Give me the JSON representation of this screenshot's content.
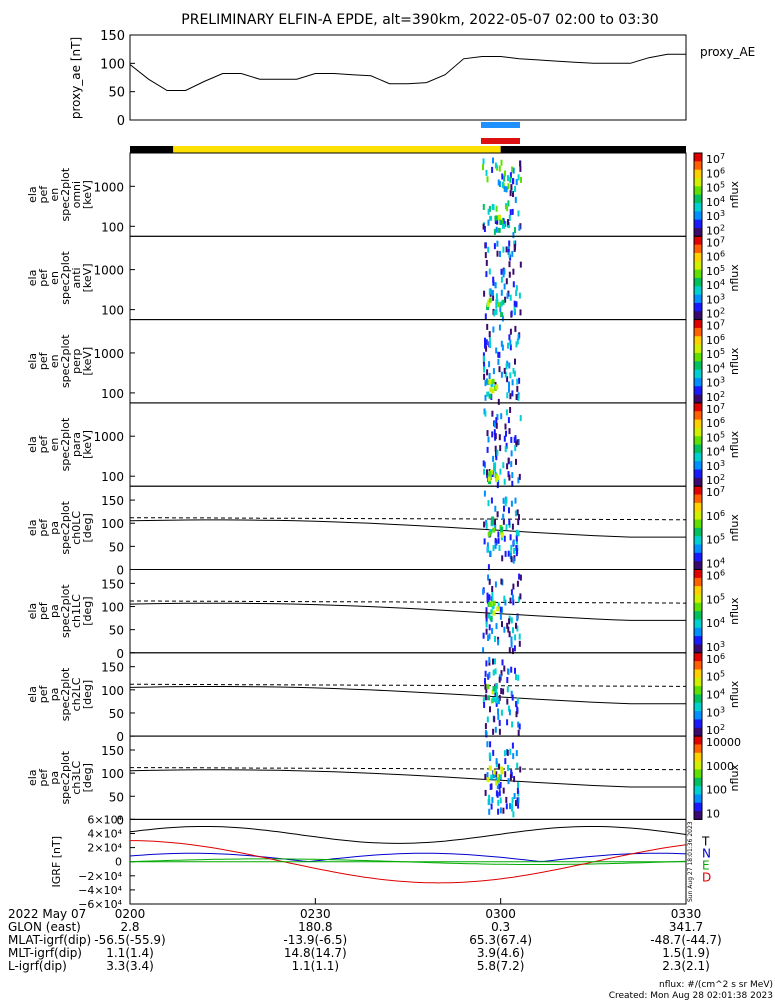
{
  "title": "PRELIMINARY ELFIN-A EPDE, alt=390km, 2022-05-07 02:00 to 03:30",
  "chart_data": [
    {
      "type": "line",
      "name": "proxy_ae",
      "ylabel": "proxy_ae [nT]",
      "legend": "proxy_AE",
      "ylim": [
        0,
        150
      ],
      "yticks": [
        "150",
        "100",
        "50",
        "0"
      ],
      "x": [
        0,
        3,
        6,
        9,
        12,
        15,
        18,
        21,
        24,
        27,
        30,
        33,
        36,
        39,
        42,
        45,
        48,
        51,
        54,
        57,
        60,
        63,
        66,
        69,
        72,
        75,
        78,
        81,
        84,
        87,
        90
      ],
      "values": [
        98,
        72,
        52,
        52,
        68,
        82,
        82,
        72,
        72,
        72,
        82,
        82,
        80,
        78,
        64,
        64,
        66,
        80,
        108,
        112,
        112,
        108,
        106,
        104,
        102,
        100,
        100,
        100,
        110,
        116,
        116
      ]
    },
    {
      "type": "bar",
      "name": "science_zone_bar",
      "segments": [
        {
          "from": 0,
          "to": 7,
          "color": "#000000"
        },
        {
          "from": 7,
          "to": 60,
          "color": "#ffe000"
        },
        {
          "from": 60,
          "to": 90,
          "color": "#000000"
        }
      ],
      "markers": [
        {
          "label": "blue",
          "from": 55,
          "to": 59,
          "color": "#2090ff"
        },
        {
          "label": "red",
          "from": 55,
          "to": 59,
          "color": "#dd1111"
        }
      ]
    },
    {
      "type": "heatmap",
      "panels": [
        {
          "id": "omni",
          "ylabel": [
            "ela",
            "pef",
            "en",
            "spec2plot",
            "omni",
            "[keV]"
          ],
          "ylog": true,
          "yticks": [
            "1000",
            "100"
          ],
          "cbar_ticks": [
            "10^7",
            "10^6",
            "10^5",
            "10^4",
            "10^3",
            "10^2"
          ],
          "cbar_label": "nflux"
        },
        {
          "id": "anti",
          "ylabel": [
            "ela",
            "pef",
            "en",
            "spec2plot",
            "anti",
            "[keV]"
          ],
          "ylog": true,
          "yticks": [
            "1000",
            "100"
          ],
          "cbar_ticks": [
            "10^7",
            "10^6",
            "10^5",
            "10^4",
            "10^3",
            "10^2"
          ],
          "cbar_label": "nflux"
        },
        {
          "id": "perp",
          "ylabel": [
            "ela",
            "pef",
            "en",
            "spec2plot",
            "perp",
            "[keV]"
          ],
          "ylog": true,
          "yticks": [
            "1000",
            "100"
          ],
          "cbar_ticks": [
            "10^7",
            "10^6",
            "10^5",
            "10^4",
            "10^3",
            "10^2"
          ],
          "cbar_label": "nflux"
        },
        {
          "id": "para",
          "ylabel": [
            "ela",
            "pef",
            "en",
            "spec2plot",
            "para",
            "[keV]"
          ],
          "ylog": true,
          "yticks": [
            "1000",
            "100"
          ],
          "cbar_ticks": [
            "10^7",
            "10^6",
            "10^5",
            "10^4",
            "10^3",
            "10^2"
          ],
          "cbar_label": "nflux"
        },
        {
          "id": "ch0LC",
          "ylabel": [
            "ela",
            "pef",
            "pa",
            "spec2plot",
            "ch0LC",
            "[deg]"
          ],
          "ylim": [
            0,
            180
          ],
          "yticks": [
            "150",
            "100",
            "50",
            "0"
          ],
          "cbar_ticks": [
            "10^7",
            "10^6",
            "10^5",
            "10^4"
          ],
          "cbar_label": "nflux"
        },
        {
          "id": "ch1LC",
          "ylabel": [
            "ela",
            "pef",
            "pa",
            "spec2plot",
            "ch1LC",
            "[deg]"
          ],
          "ylim": [
            0,
            180
          ],
          "yticks": [
            "150",
            "100",
            "50",
            "0"
          ],
          "cbar_ticks": [
            "10^6",
            "10^5",
            "10^4",
            "10^3"
          ],
          "cbar_label": "nflux"
        },
        {
          "id": "ch2LC",
          "ylabel": [
            "ela",
            "pef",
            "pa",
            "spec2plot",
            "ch2LC",
            "[deg]"
          ],
          "ylim": [
            0,
            180
          ],
          "yticks": [
            "150",
            "100",
            "50",
            "0"
          ],
          "cbar_ticks": [
            "10^6",
            "10^5",
            "10^4",
            "10^3",
            "10^2"
          ],
          "cbar_label": "nflux"
        },
        {
          "id": "ch3LC",
          "ylabel": [
            "ela",
            "pef",
            "pa",
            "spec2plot",
            "ch3LC",
            "[deg]"
          ],
          "ylim": [
            0,
            180
          ],
          "yticks": [
            "150",
            "100",
            "50",
            "0"
          ],
          "cbar_ticks": [
            "10000",
            "1000",
            "100",
            "10"
          ],
          "cbar_label": "nflux"
        }
      ]
    },
    {
      "type": "line",
      "name": "IGRF",
      "ylabel": "IGRF [nT]",
      "ylim": [
        -60000,
        60000
      ],
      "yticks": [
        "6×10⁴",
        "4×10⁴",
        "2×10⁴",
        "0",
        "−2×10⁴",
        "−4×10⁴",
        "−6×10⁴"
      ],
      "series": [
        {
          "name": "T",
          "color": "#000000"
        },
        {
          "name": "N",
          "color": "#0000cc"
        },
        {
          "name": "E",
          "color": "#00aa00"
        },
        {
          "name": "D",
          "color": "#dd0000"
        }
      ],
      "side_text": "Sun Aug 27 18:01:36 2023"
    }
  ],
  "x_axis": {
    "rows": [
      {
        "label": "2022 May 07",
        "values": [
          "0200",
          "0230",
          "0300",
          "0330"
        ]
      },
      {
        "label": "GLON (east)",
        "values": [
          "2.8",
          "180.8",
          "0.3",
          "341.7"
        ]
      },
      {
        "label": "MLAT-igrf(dip)",
        "values": [
          "-56.5(-55.9)",
          "-13.9(-6.5)",
          "65.3(67.4)",
          "-48.7(-44.7)"
        ]
      },
      {
        "label": "MLT-igrf(dip)",
        "values": [
          "1.1(1.4)",
          "14.8(14.7)",
          "3.9(4.6)",
          "1.5(1.9)"
        ]
      },
      {
        "label": "L-igrf(dip)",
        "values": [
          "3.3(3.4)",
          "1.1(1.1)",
          "5.8(7.2)",
          "2.3(2.1)"
        ]
      }
    ]
  },
  "footer": {
    "units": "nflux: #/(cm^2 s sr MeV)",
    "created": "Created: Mon Aug 28 02:01:38 2023"
  }
}
